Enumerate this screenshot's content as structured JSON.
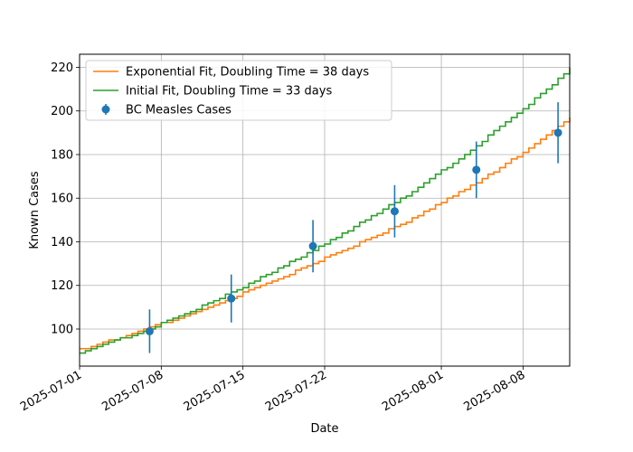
{
  "chart_data": {
    "type": "line",
    "title": "",
    "xlabel": "Date",
    "ylabel": "Known Cases",
    "xlim": [
      "2025-07-01",
      "2025-08-12"
    ],
    "ylim": [
      83,
      226
    ],
    "grid": true,
    "legend_position": "top-left",
    "x_ticks": [
      "2025-07-01",
      "2025-07-08",
      "2025-07-15",
      "2025-07-22",
      "2025-08-01",
      "2025-08-08"
    ],
    "y_ticks": [
      100,
      120,
      140,
      160,
      180,
      200,
      220
    ],
    "series": [
      {
        "name": "Exponential Fit, Doubling Time = 38 days",
        "kind": "step-line",
        "color": "#ff7f0e",
        "x": [
          "2025-07-01",
          "2025-07-08",
          "2025-07-15",
          "2025-07-22",
          "2025-07-29",
          "2025-08-05",
          "2025-08-12"
        ],
        "y": [
          91,
          103,
          117,
          133,
          150,
          171,
          197
        ]
      },
      {
        "name": "Initial Fit, Doubling Time = 33 days",
        "kind": "step-line",
        "color": "#2ca02c",
        "x": [
          "2025-07-01",
          "2025-07-08",
          "2025-07-15",
          "2025-07-22",
          "2025-07-29",
          "2025-08-05",
          "2025-08-12"
        ],
        "y": [
          89.5,
          103,
          120,
          140,
          162,
          189,
          220
        ]
      },
      {
        "name": "BC Measles Cases",
        "kind": "scatter-errorbar",
        "color": "#1f77b4",
        "x": [
          "2025-07-07",
          "2025-07-14",
          "2025-07-21",
          "2025-07-28",
          "2025-08-04",
          "2025-08-11"
        ],
        "y": [
          99,
          114,
          138,
          154,
          173,
          190
        ],
        "error": [
          10,
          11,
          12,
          12,
          13,
          14
        ]
      }
    ]
  }
}
